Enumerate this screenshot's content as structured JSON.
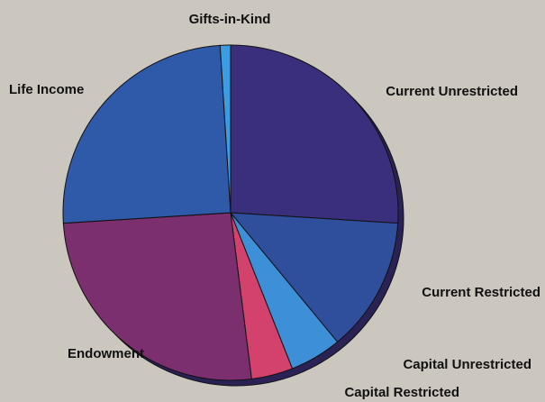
{
  "chart_data": {
    "type": "pie",
    "categories": [
      "Current Unrestricted",
      "Current Restricted",
      "Capital Unrestricted",
      "Capital Restricted",
      "Endowment",
      "Life Income",
      "Gifts-in-Kind"
    ],
    "values": [
      26,
      13,
      5,
      4,
      26,
      25,
      1
    ],
    "colors": [
      "#3a2f7c",
      "#2f4e9c",
      "#3d8fd8",
      "#d2426c",
      "#7b2f6f",
      "#2f5aa9",
      "#3c9ce2"
    ]
  }
}
